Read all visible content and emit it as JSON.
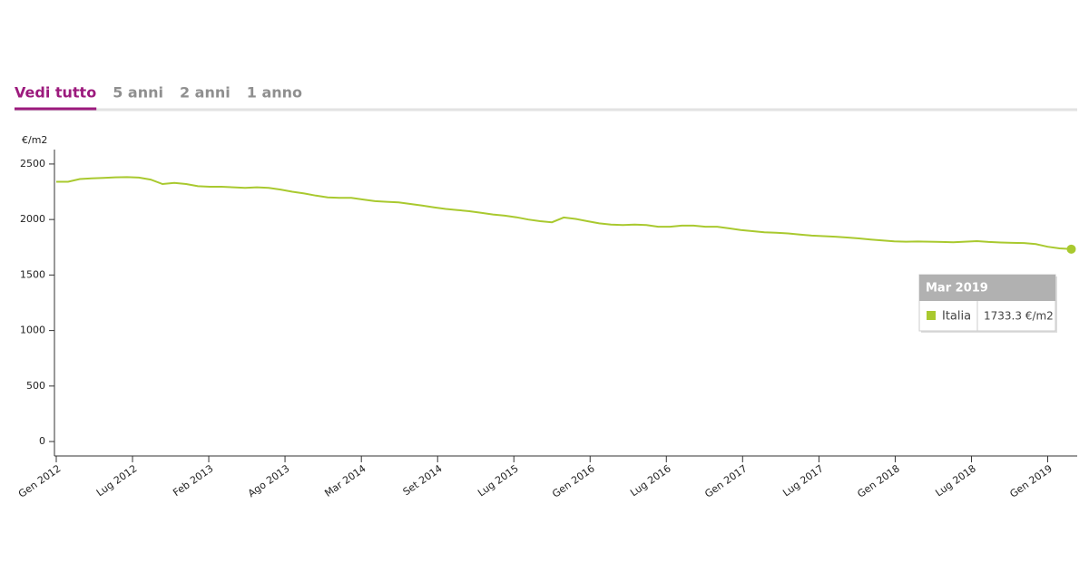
{
  "tabs": {
    "items": [
      "Vedi tutto",
      "5 anni",
      "2 anni",
      "1 anno"
    ],
    "active": 0,
    "active_color": "#9c1a7d",
    "color": "#8f8f8f"
  },
  "chart_data": {
    "type": "line",
    "ylabel": "€/m2",
    "x": [
      0,
      1,
      2,
      3,
      4,
      5,
      6,
      7,
      8,
      9,
      10,
      11,
      12,
      13,
      14,
      15,
      16,
      17,
      18,
      19,
      20,
      21,
      22,
      23,
      24,
      25,
      26,
      27,
      28,
      29,
      30,
      31,
      32,
      33,
      34,
      35,
      36,
      37,
      38,
      39,
      40,
      41,
      42,
      43,
      44,
      45,
      46,
      47,
      48,
      49,
      50,
      51,
      52,
      53,
      54,
      55,
      56,
      57,
      58,
      59,
      60,
      61,
      62,
      63,
      64,
      65,
      66,
      67,
      68,
      69,
      70,
      71,
      72,
      73,
      74,
      75,
      76,
      77,
      78,
      79,
      80,
      81,
      82,
      83,
      84,
      85,
      86
    ],
    "series": [
      {
        "name": "Italia",
        "color": "#a9c92f",
        "values": [
          2340,
          2340,
          2365,
          2370,
          2375,
          2380,
          2382,
          2378,
          2360,
          2320,
          2330,
          2320,
          2300,
          2295,
          2295,
          2290,
          2285,
          2290,
          2285,
          2270,
          2250,
          2235,
          2215,
          2200,
          2195,
          2195,
          2180,
          2165,
          2160,
          2155,
          2140,
          2125,
          2110,
          2095,
          2085,
          2075,
          2060,
          2045,
          2035,
          2020,
          2000,
          1985,
          1975,
          2018,
          2005,
          1985,
          1965,
          1955,
          1950,
          1955,
          1950,
          1935,
          1935,
          1945,
          1945,
          1935,
          1935,
          1920,
          1905,
          1895,
          1885,
          1880,
          1875,
          1865,
          1855,
          1850,
          1845,
          1838,
          1830,
          1820,
          1812,
          1803,
          1800,
          1802,
          1800,
          1798,
          1795,
          1800,
          1805,
          1798,
          1793,
          1790,
          1788,
          1778,
          1755,
          1740,
          1733.3
        ]
      }
    ],
    "xlim": [
      0,
      86.5
    ],
    "xticks": [
      {
        "value": 0,
        "label": "Gen 2012"
      },
      {
        "value": 6.46,
        "label": "Lug 2012"
      },
      {
        "value": 12.92,
        "label": "Feb 2013"
      },
      {
        "value": 19.38,
        "label": "Ago 2013"
      },
      {
        "value": 25.85,
        "label": "Mar 2014"
      },
      {
        "value": 32.31,
        "label": "Set 2014"
      },
      {
        "value": 38.77,
        "label": "Lug 2015"
      },
      {
        "value": 45.23,
        "label": "Gen 2016"
      },
      {
        "value": 51.69,
        "label": "Lug 2016"
      },
      {
        "value": 58.15,
        "label": "Gen 2017"
      },
      {
        "value": 64.62,
        "label": "Lug 2017"
      },
      {
        "value": 71.08,
        "label": "Gen 2018"
      },
      {
        "value": 77.54,
        "label": "Lug 2018"
      },
      {
        "value": 84,
        "label": "Gen 2019"
      }
    ],
    "ylim": [
      -130,
      2630
    ],
    "yticks": [
      0,
      500,
      1000,
      1500,
      2000,
      2500
    ],
    "tooltip": {
      "x": 86,
      "title": "Mar 2019",
      "value": 1733.3,
      "value_label": "1733.3 €/m2"
    }
  }
}
